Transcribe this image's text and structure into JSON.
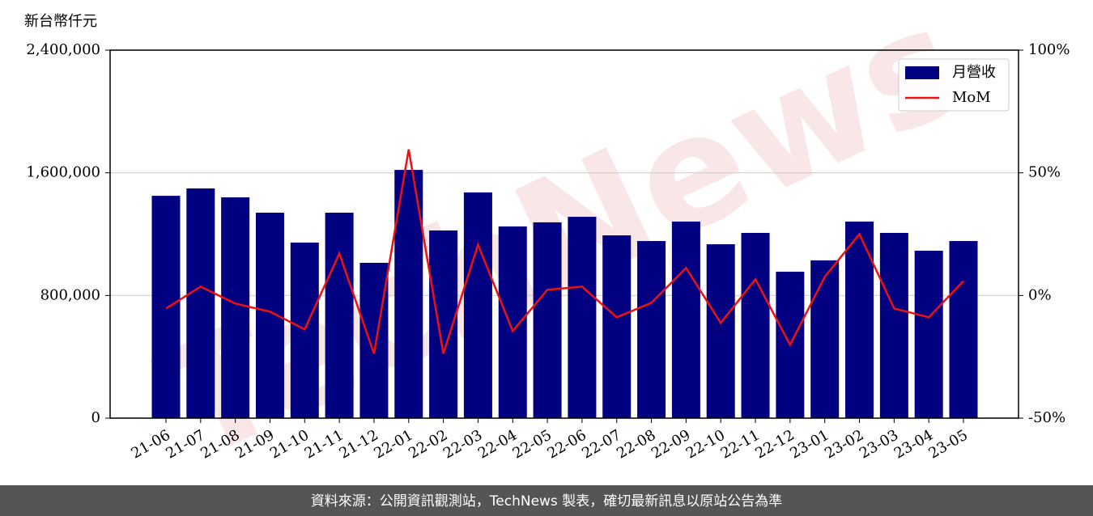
{
  "chart_data": {
    "type": "bar_line",
    "ylabel": "新台幣仟元",
    "watermark": "TechNews",
    "footer": "資料來源：公開資訊觀測站，TechNews 製表，確切最新訊息以原站公告為準",
    "categories": [
      "21-06",
      "21-07",
      "21-08",
      "21-09",
      "21-10",
      "21-11",
      "21-12",
      "22-01",
      "22-02",
      "22-03",
      "22-04",
      "22-05",
      "22-06",
      "22-07",
      "22-08",
      "22-09",
      "22-10",
      "22-11",
      "22-12",
      "23-01",
      "23-02",
      "23-03",
      "23-04",
      "23-05"
    ],
    "series": [
      {
        "name": "月營收",
        "type": "bar",
        "color": "#000080",
        "values": [
          1450000,
          1498000,
          1440000,
          1340000,
          1145000,
          1340000,
          1013000,
          1619000,
          1224000,
          1472000,
          1250000,
          1277000,
          1313000,
          1192000,
          1155000,
          1282000,
          1134000,
          1208000,
          955000,
          1029000,
          1282000,
          1208000,
          1092000,
          1155000
        ]
      },
      {
        "name": "MoM",
        "type": "line",
        "color": "#ee1111",
        "axis": "y2",
        "values": [
          -5.3,
          3.6,
          -3.3,
          -6.6,
          -13.8,
          17.1,
          -23.7,
          59.5,
          -23.7,
          20.7,
          -14.5,
          2.3,
          3.6,
          -8.9,
          -3.0,
          11.2,
          -11.2,
          6.6,
          -20.1,
          7.6,
          25.0,
          -5.3,
          -8.9,
          5.9
        ]
      }
    ],
    "ylim": [
      0,
      2400000
    ],
    "yticks": [
      {
        "value": 0,
        "label": "0"
      },
      {
        "value": 800000,
        "label": "800,000"
      },
      {
        "value": 1600000,
        "label": "1,600,000"
      },
      {
        "value": 2400000,
        "label": "2,400,000"
      }
    ],
    "y2lim": [
      -50,
      100
    ],
    "y2ticks": [
      {
        "value": -50,
        "label": "-50%"
      },
      {
        "value": 0,
        "label": "0%"
      },
      {
        "value": 50,
        "label": "50%"
      },
      {
        "value": 100,
        "label": "100%"
      }
    ],
    "grid": true,
    "legend": "upper right"
  }
}
